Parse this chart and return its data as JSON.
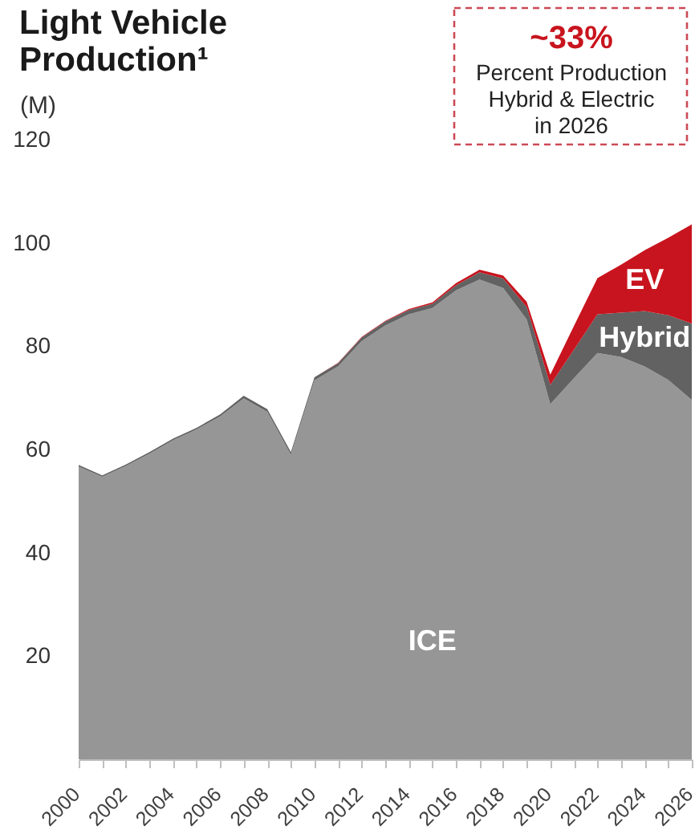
{
  "chart_data": {
    "type": "area",
    "title": "Light Vehicle Production¹",
    "ylabel": "(M)",
    "annotations": [
      "~33%",
      "Percent Production Hybrid & Electric in 2026"
    ],
    "x": [
      2000,
      2001,
      2002,
      2003,
      2004,
      2005,
      2006,
      2007,
      2008,
      2009,
      2010,
      2011,
      2012,
      2013,
      2014,
      2015,
      2016,
      2017,
      2018,
      2019,
      2020,
      2021,
      2022,
      2023,
      2024,
      2025,
      2026
    ],
    "series": [
      {
        "name": "ICE",
        "color": "#969696",
        "values": [
          56.7,
          54.7,
          56.8,
          59.2,
          61.8,
          63.9,
          66.4,
          69.9,
          67.3,
          59.0,
          73.4,
          76.1,
          81.0,
          84.0,
          86.2,
          87.4,
          90.8,
          92.9,
          91.3,
          85.2,
          68.8,
          73.8,
          78.7,
          77.9,
          76.1,
          73.5,
          69.6
        ]
      },
      {
        "name": "Hybrid",
        "color": "#626262",
        "values": [
          0.3,
          0.3,
          0.3,
          0.3,
          0.3,
          0.3,
          0.4,
          0.5,
          0.5,
          0.5,
          0.6,
          0.6,
          0.7,
          0.8,
          0.8,
          0.8,
          1.0,
          1.4,
          1.8,
          2.4,
          3.7,
          5.5,
          7.5,
          8.6,
          10.7,
          12.5,
          14.8
        ]
      },
      {
        "name": "EV",
        "color": "#c8141e",
        "values": [
          0,
          0,
          0,
          0,
          0,
          0,
          0,
          0,
          0,
          0,
          0,
          0.1,
          0.1,
          0.1,
          0.2,
          0.3,
          0.4,
          0.5,
          0.6,
          1.0,
          2.0,
          4.6,
          7.0,
          9.3,
          11.8,
          15.0,
          19.2
        ]
      }
    ],
    "stacked": true,
    "xlim": [
      2000,
      2026
    ],
    "xticks": [
      2000,
      {
        "value": 2001,
        "label": null
      },
      2002,
      {
        "value": 2003,
        "label": null
      },
      2004,
      {
        "value": 2005,
        "label": null
      },
      2006,
      {
        "value": 2007,
        "label": null
      },
      2008,
      {
        "value": 2009,
        "label": null
      },
      2010,
      {
        "value": 2011,
        "label": null
      },
      2012,
      {
        "value": 2013,
        "label": null
      },
      2014,
      {
        "value": 2015,
        "label": null
      },
      2016,
      {
        "value": 2017,
        "label": null
      },
      2018,
      {
        "value": 2019,
        "label": null
      },
      2020,
      {
        "value": 2021,
        "label": null
      },
      2022,
      {
        "value": 2023,
        "label": null
      },
      2024,
      {
        "value": 2025,
        "label": null
      },
      2026
    ],
    "ylim": [
      0,
      120
    ],
    "yticks": [
      20,
      40,
      60,
      80,
      100,
      120
    ]
  }
}
